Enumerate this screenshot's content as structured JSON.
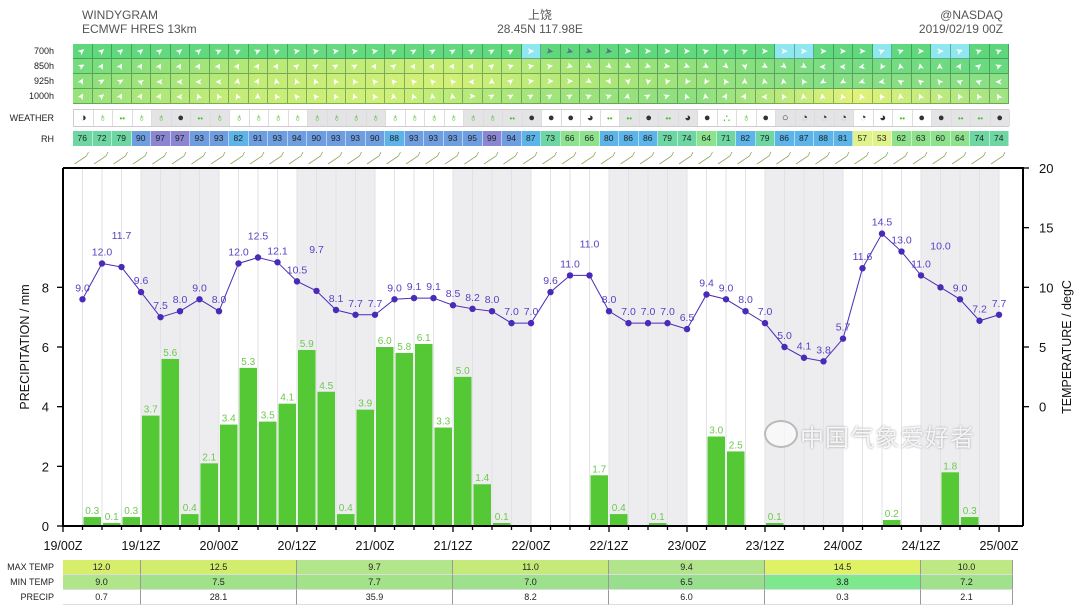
{
  "header": {
    "title": "WINDYGRAM",
    "model": "ECMWF HRES 13km",
    "location": "上饶",
    "coords": "28.45N 117.98E",
    "credit": "@NASDAQ",
    "run": "2019/02/19 00Z"
  },
  "wind": {
    "levels": [
      {
        "label": "700h",
        "bg": [
          "#5fd87c",
          "#66da80",
          "#5fd87c",
          "#62d97e",
          "#5ed77c"
        ],
        "highlight_cells": [
          23,
          36,
          37,
          41,
          44,
          45
        ],
        "highlight_color": "#8fe8f0",
        "dir": [
          -40,
          -40,
          -40,
          -40,
          -40,
          -40,
          -40,
          -25,
          -25,
          -25,
          -20,
          -10,
          -10,
          -10,
          -10,
          -10,
          -25,
          -30,
          -30,
          -30,
          -30,
          -30,
          -30,
          0,
          10,
          15,
          15,
          10,
          5,
          0,
          0,
          0,
          -15,
          -20,
          -20,
          0,
          0,
          0,
          0,
          0,
          0,
          -20,
          -20,
          0,
          0,
          -20,
          -20,
          -20
        ]
      },
      {
        "label": "850h",
        "bg": [
          "#72dc7e",
          "#b8e977",
          "#c9ee78",
          "#9ae27a",
          "#7bdd82",
          "#68d97f"
        ],
        "highlight_cells": [],
        "highlight_color": "",
        "dir": [
          -30,
          -60,
          -60,
          -60,
          -60,
          -60,
          -60,
          -60,
          -60,
          -60,
          -60,
          -40,
          -30,
          -30,
          -30,
          -60,
          -40,
          -60,
          -60,
          -60,
          -60,
          -40,
          -20,
          -10,
          -10,
          20,
          30,
          40,
          30,
          20,
          10,
          20,
          30,
          40,
          80,
          30,
          40,
          30,
          180,
          180,
          170,
          120,
          -100,
          -100,
          -90,
          -60,
          -40,
          -20
        ]
      },
      {
        "label": "925h",
        "bg": [
          "#88df7c",
          "#c4ec78",
          "#d2f078",
          "#a6e57a",
          "#86de84",
          "#8cdf84"
        ],
        "highlight_cells": [],
        "highlight_color": "",
        "dir": [
          -60,
          -30,
          -30,
          200,
          180,
          180,
          180,
          180,
          -80,
          -60,
          -100,
          -110,
          -110,
          -120,
          -120,
          -130,
          -130,
          -130,
          -130,
          -130,
          180,
          -90,
          -40,
          -10,
          0,
          0,
          30,
          60,
          80,
          100,
          110,
          120,
          120,
          -120,
          -90,
          -100,
          -100,
          -120,
          150,
          150,
          160,
          170,
          -150,
          -140,
          -130,
          200,
          200,
          180
        ]
      },
      {
        "label": "1000h",
        "bg": [
          "#96e27c",
          "#c4ec78",
          "#cff078",
          "#a2e47b",
          "#8ddf80",
          "#e2f27a",
          "#9fe383"
        ],
        "highlight_cells": [],
        "highlight_color": "",
        "dir": [
          -60,
          -40,
          -60,
          -60,
          -60,
          180,
          -110,
          -120,
          -110,
          -90,
          -120,
          -130,
          -130,
          -120,
          -110,
          -120,
          -100,
          -110,
          -100,
          -100,
          0,
          -30,
          -30,
          -30,
          -30,
          -30,
          -20,
          -20,
          -80,
          -30,
          -20,
          -110,
          -100,
          -60,
          -60,
          180,
          -120,
          -100,
          -100,
          -110,
          -110,
          -120,
          -100,
          -110,
          -120,
          -120,
          -120,
          -120
        ]
      }
    ]
  },
  "weather": {
    "label": "WEATHER",
    "icons": [
      "partly-cloudy",
      "rain",
      "light-rain",
      "rain",
      "rain",
      "overcast",
      "light-rain",
      "rain",
      "rain",
      "rain",
      "rain",
      "rain",
      "rain",
      "rain",
      "rain",
      "rain",
      "rain",
      "rain",
      "rain",
      "rain",
      "rain",
      "rain",
      "light-rain",
      "overcast",
      "overcast",
      "overcast",
      "mostly-cloudy",
      "light-rain",
      "light-rain",
      "overcast",
      "light-rain",
      "mostly-cloudy",
      "overcast",
      "showers",
      "rain",
      "overcast",
      "clear",
      "few-clouds",
      "few-clouds",
      "few-clouds",
      "few-clouds",
      "mostly-cloudy",
      "light-rain",
      "overcast",
      "overcast",
      "light-rain",
      "light-rain",
      "overcast"
    ]
  },
  "rh": {
    "label": "RH",
    "values": [
      76,
      72,
      79,
      90,
      97,
      97,
      93,
      93,
      82,
      91,
      93,
      94,
      90,
      93,
      93,
      90,
      88,
      93,
      93,
      93,
      95,
      99,
      94,
      87,
      73,
      66,
      66,
      80,
      86,
      86,
      79,
      74,
      64,
      71,
      82,
      79,
      86,
      87,
      88,
      81,
      57,
      53,
      62,
      63,
      60,
      64,
      74,
      74
    ]
  },
  "chart_data": {
    "type": "bar+line",
    "x_tick_labels": [
      "19/00Z",
      "19/12Z",
      "20/00Z",
      "20/12Z",
      "21/00Z",
      "21/12Z",
      "22/00Z",
      "22/12Z",
      "23/00Z",
      "23/12Z",
      "24/00Z",
      "24/12Z",
      "25/00Z"
    ],
    "ylabel_left": "PRECIPITATION / mm",
    "ylabel_right": "TEMPERATURE / degC",
    "ylim_left": [
      0,
      12
    ],
    "yticks_left": [
      "0",
      "2",
      "4",
      "6",
      "8"
    ],
    "ylim_right": [
      -10,
      20
    ],
    "yticks_right": [
      "0",
      "5",
      "10",
      "15",
      "20"
    ],
    "grid": true,
    "night_shading": true,
    "series": [
      {
        "type": "bar",
        "color": "#55c935",
        "label_color": "#6cc94e",
        "values": [
          0,
          0.3,
          0.1,
          0.3,
          3.7,
          5.6,
          0.4,
          2.1,
          3.4,
          5.3,
          3.5,
          4.1,
          5.9,
          4.5,
          0.4,
          3.9,
          6.0,
          5.8,
          6.1,
          3.3,
          5.0,
          1.4,
          0.1,
          0,
          0,
          0,
          0,
          1.7,
          0.4,
          0,
          0.1,
          0,
          0,
          3.0,
          2.5,
          0,
          0.1,
          0,
          0,
          0,
          0,
          0,
          0.2,
          0,
          0,
          1.8,
          0.3,
          0
        ]
      },
      {
        "type": "line",
        "color": "#4a2bb8",
        "values": [
          9.0,
          12.0,
          11.7,
          9.6,
          7.5,
          8.0,
          9.0,
          8.0,
          12.0,
          12.5,
          12.1,
          10.5,
          9.7,
          8.1,
          7.7,
          7.7,
          9.0,
          9.1,
          9.1,
          8.5,
          8.2,
          8.0,
          7.0,
          7.0,
          9.6,
          11.0,
          11.0,
          8.0,
          7.0,
          7.0,
          7.0,
          6.5,
          9.4,
          9.0,
          8.0,
          7.0,
          5.0,
          4.1,
          3.8,
          5.7,
          11.6,
          14.5,
          13.0,
          11.0,
          10.0,
          9.0,
          7.2,
          7.7
        ]
      }
    ]
  },
  "summary_table": {
    "rows": [
      {
        "label": "MAX TEMP",
        "values": [
          "12.0",
          "12.5",
          "9.7",
          "11.0",
          "9.4",
          "14.5",
          "10.0"
        ],
        "colors": [
          "#d6ee6c",
          "#d2ed6e",
          "#b3e58a",
          "#c6ea7a",
          "#b2e48c",
          "#dff266",
          "#bde884"
        ]
      },
      {
        "label": "MIN TEMP",
        "values": [
          "9.0",
          "7.5",
          "7.7",
          "7.0",
          "6.5",
          "3.8",
          "7.2"
        ],
        "colors": [
          "#b0e58a",
          "#9fe28a",
          "#a2e38a",
          "#9de18c",
          "#97df8c",
          "#7ee88c",
          "#a0e28c"
        ]
      },
      {
        "label": "PRECIP",
        "values": [
          "0.7",
          "28.1",
          "35.9",
          "8.2",
          "6.0",
          "0.3",
          "2.1"
        ],
        "colors": [
          "#ffffff",
          "#ffffff",
          "#ffffff",
          "#ffffff",
          "#ffffff",
          "#ffffff",
          "#ffffff"
        ]
      }
    ]
  },
  "watermark": "中国气象爱好者"
}
